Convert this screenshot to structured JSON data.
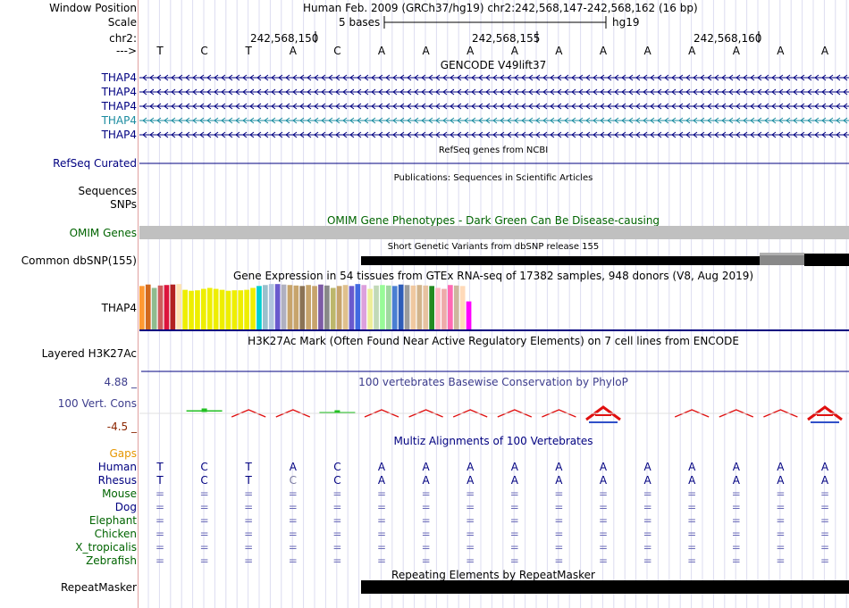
{
  "header": {
    "window_position_label": "Window Position",
    "window_position_value": "Human Feb. 2009 (GRCh37/hg19)   chr2:242,568,147-242,568,162 (16 bp)",
    "scale_label": "Scale",
    "scale_value": "5 bases",
    "scale_assembly": "hg19",
    "chrom_label": "chr2:",
    "coord_ticks": [
      "242,568,150",
      "242,568,155",
      "242,568,160"
    ],
    "strand_label": "--->",
    "bases": [
      "T",
      "C",
      "T",
      "A",
      "C",
      "A",
      "A",
      "A",
      "A",
      "A",
      "A",
      "A",
      "A",
      "A",
      "A",
      "A"
    ]
  },
  "colors": {
    "navy": "#000080",
    "teal": "#1b8ca0",
    "dark_green": "#006400",
    "brown": "#8b2500",
    "orange": "#e69600",
    "gray": "#c0c0c0",
    "black": "#000000",
    "phylop_label": "#3c3c8c",
    "guide": "#d8d8f0"
  },
  "tracks": {
    "gencode": {
      "title": "GENCODE V49lift37",
      "rows": [
        {
          "label": "THAP4",
          "color": "#000080"
        },
        {
          "label": "THAP4",
          "color": "#000080"
        },
        {
          "label": "THAP4",
          "color": "#000080"
        },
        {
          "label": "THAP4",
          "color": "#1b8ca0"
        },
        {
          "label": "THAP4",
          "color": "#000080"
        }
      ]
    },
    "refseq": {
      "title": "RefSeq genes from NCBI",
      "label": "RefSeq Curated"
    },
    "publications": {
      "title": "Publications: Sequences in Scientific Articles",
      "label": "Sequences"
    },
    "snps": {
      "label": "SNPs"
    },
    "omim": {
      "title": "OMIM Gene Phenotypes - Dark Green Can Be Disease-causing",
      "label": "OMIM Genes"
    },
    "dbsnp": {
      "title": "Short Genetic Variants from dbSNP release 155",
      "label": "Common dbSNP(155)"
    },
    "gtex": {
      "title": "Gene Expression in 54 tissues from GTEx RNA-seq of 17382 samples, 948 donors (V8, Aug 2019)",
      "label": "THAP4",
      "values": [
        0.92,
        0.95,
        0.88,
        0.93,
        0.94,
        0.95,
        0.96,
        0.84,
        0.82,
        0.83,
        0.86,
        0.88,
        0.86,
        0.84,
        0.82,
        0.83,
        0.83,
        0.84,
        0.88,
        0.92,
        0.94,
        0.96,
        0.96,
        0.95,
        0.94,
        0.93,
        0.92,
        0.94,
        0.92,
        0.95,
        0.93,
        0.88,
        0.92,
        0.94,
        0.92,
        0.96,
        0.94,
        0.86,
        0.93,
        0.94,
        0.93,
        0.92,
        0.95,
        0.94,
        0.93,
        0.94,
        0.93,
        0.92,
        0.88,
        0.86,
        0.94,
        0.93,
        0.92,
        0.6
      ],
      "colors": [
        "#ff9933",
        "#d2691e",
        "#8fbc8f",
        "#cd5c5c",
        "#dc143c",
        "#b22222",
        "#ffe4b5",
        "#eeee00",
        "#eeee00",
        "#eeee00",
        "#eeee00",
        "#eeee00",
        "#eeee00",
        "#eeee00",
        "#eeee00",
        "#eeee00",
        "#eeee00",
        "#eeee00",
        "#eeee00",
        "#00ced1",
        "#9ac0cd",
        "#b0c4de",
        "#6a5acd",
        "#b0b0c0",
        "#c7a46c",
        "#c7a46c",
        "#8b7355",
        "#c7a46c",
        "#c7a46c",
        "#7d5ba6",
        "#888888",
        "#bdb76b",
        "#c7a46c",
        "#dfc08c",
        "#6a5acd",
        "#4169e1",
        "#dda0dd",
        "#eeee99",
        "#c1d9b7",
        "#98fb98",
        "#a0d8a0",
        "#4a7fd2",
        "#2e5cb8",
        "#9c9c9c",
        "#f0c8a0",
        "#d2b48c",
        "#e6c2a0",
        "#228b22",
        "#ffb6c1",
        "#eeaaaa",
        "#ff69b4",
        "#cdb79e",
        "#ffdab9",
        "#ff00ff"
      ]
    },
    "h3k27ac": {
      "title": "H3K27Ac Mark (Often Found Near Active Regulatory Elements) on 7 cell lines from ENCODE",
      "label": "Layered H3K27Ac"
    },
    "phylop": {
      "title": "100 vertebrates Basewise Conservation by PhyloP",
      "label": "100 Vert. Cons",
      "max_label": "4.88 _",
      "min_label": "-4.5 _",
      "scores": [
        null,
        0.35,
        -0.1,
        -0.5,
        0.15,
        -0.2,
        -0.2,
        -0.2,
        -0.2,
        -0.2,
        -1.1,
        null,
        -0.2,
        -0.2,
        -0.2,
        -1.0
      ]
    },
    "multiz": {
      "title": "Multiz Alignments of 100 Vertebrates",
      "gaps_label": "Gaps",
      "species": [
        {
          "name": "Human",
          "color": "#000080",
          "row": [
            "T",
            "C",
            "T",
            "A",
            "C",
            "A",
            "A",
            "A",
            "A",
            "A",
            "A",
            "A",
            "A",
            "A",
            "A",
            "A"
          ],
          "row_color": "#000080"
        },
        {
          "name": "Rhesus",
          "color": "#000080",
          "row": [
            "T",
            "C",
            "T",
            "C",
            "C",
            "A",
            "A",
            "A",
            "A",
            "A",
            "A",
            "A",
            "A",
            "A",
            "A",
            "A"
          ],
          "row_color": "#000080"
        },
        {
          "name": "Mouse",
          "color": "#006400",
          "row": [
            "=",
            "=",
            "=",
            "=",
            "=",
            "=",
            "=",
            "=",
            "=",
            "=",
            "=",
            "=",
            "=",
            "=",
            "=",
            "="
          ],
          "row_color": "#6a6ab8"
        },
        {
          "name": "Dog",
          "color": "#000080",
          "row": [
            "=",
            "=",
            "=",
            "=",
            "=",
            "=",
            "=",
            "=",
            "=",
            "=",
            "=",
            "=",
            "=",
            "=",
            "=",
            "="
          ],
          "row_color": "#6a6ab8"
        },
        {
          "name": "Elephant",
          "color": "#006400",
          "row": [
            "=",
            "=",
            "=",
            "=",
            "=",
            "=",
            "=",
            "=",
            "=",
            "=",
            "=",
            "=",
            "=",
            "=",
            "=",
            "="
          ],
          "row_color": "#6a6ab8"
        },
        {
          "name": "Chicken",
          "color": "#006400",
          "row": [
            "=",
            "=",
            "=",
            "=",
            "=",
            "=",
            "=",
            "=",
            "=",
            "=",
            "=",
            "=",
            "=",
            "=",
            "=",
            "="
          ],
          "row_color": "#6a6ab8"
        },
        {
          "name": "X_tropicalis",
          "color": "#006400",
          "row": [
            "=",
            "=",
            "=",
            "=",
            "=",
            "=",
            "=",
            "=",
            "=",
            "=",
            "=",
            "=",
            "=",
            "=",
            "=",
            "="
          ],
          "row_color": "#6a6ab8"
        },
        {
          "name": "Zebrafish",
          "color": "#006400",
          "row": [
            "=",
            "=",
            "=",
            "=",
            "=",
            "=",
            "=",
            "=",
            "=",
            "=",
            "=",
            "=",
            "=",
            "=",
            "=",
            "="
          ],
          "row_color": "#6a6ab8"
        }
      ]
    },
    "repeatmasker": {
      "title": "Repeating Elements by RepeatMasker",
      "label": "RepeatMasker"
    }
  }
}
